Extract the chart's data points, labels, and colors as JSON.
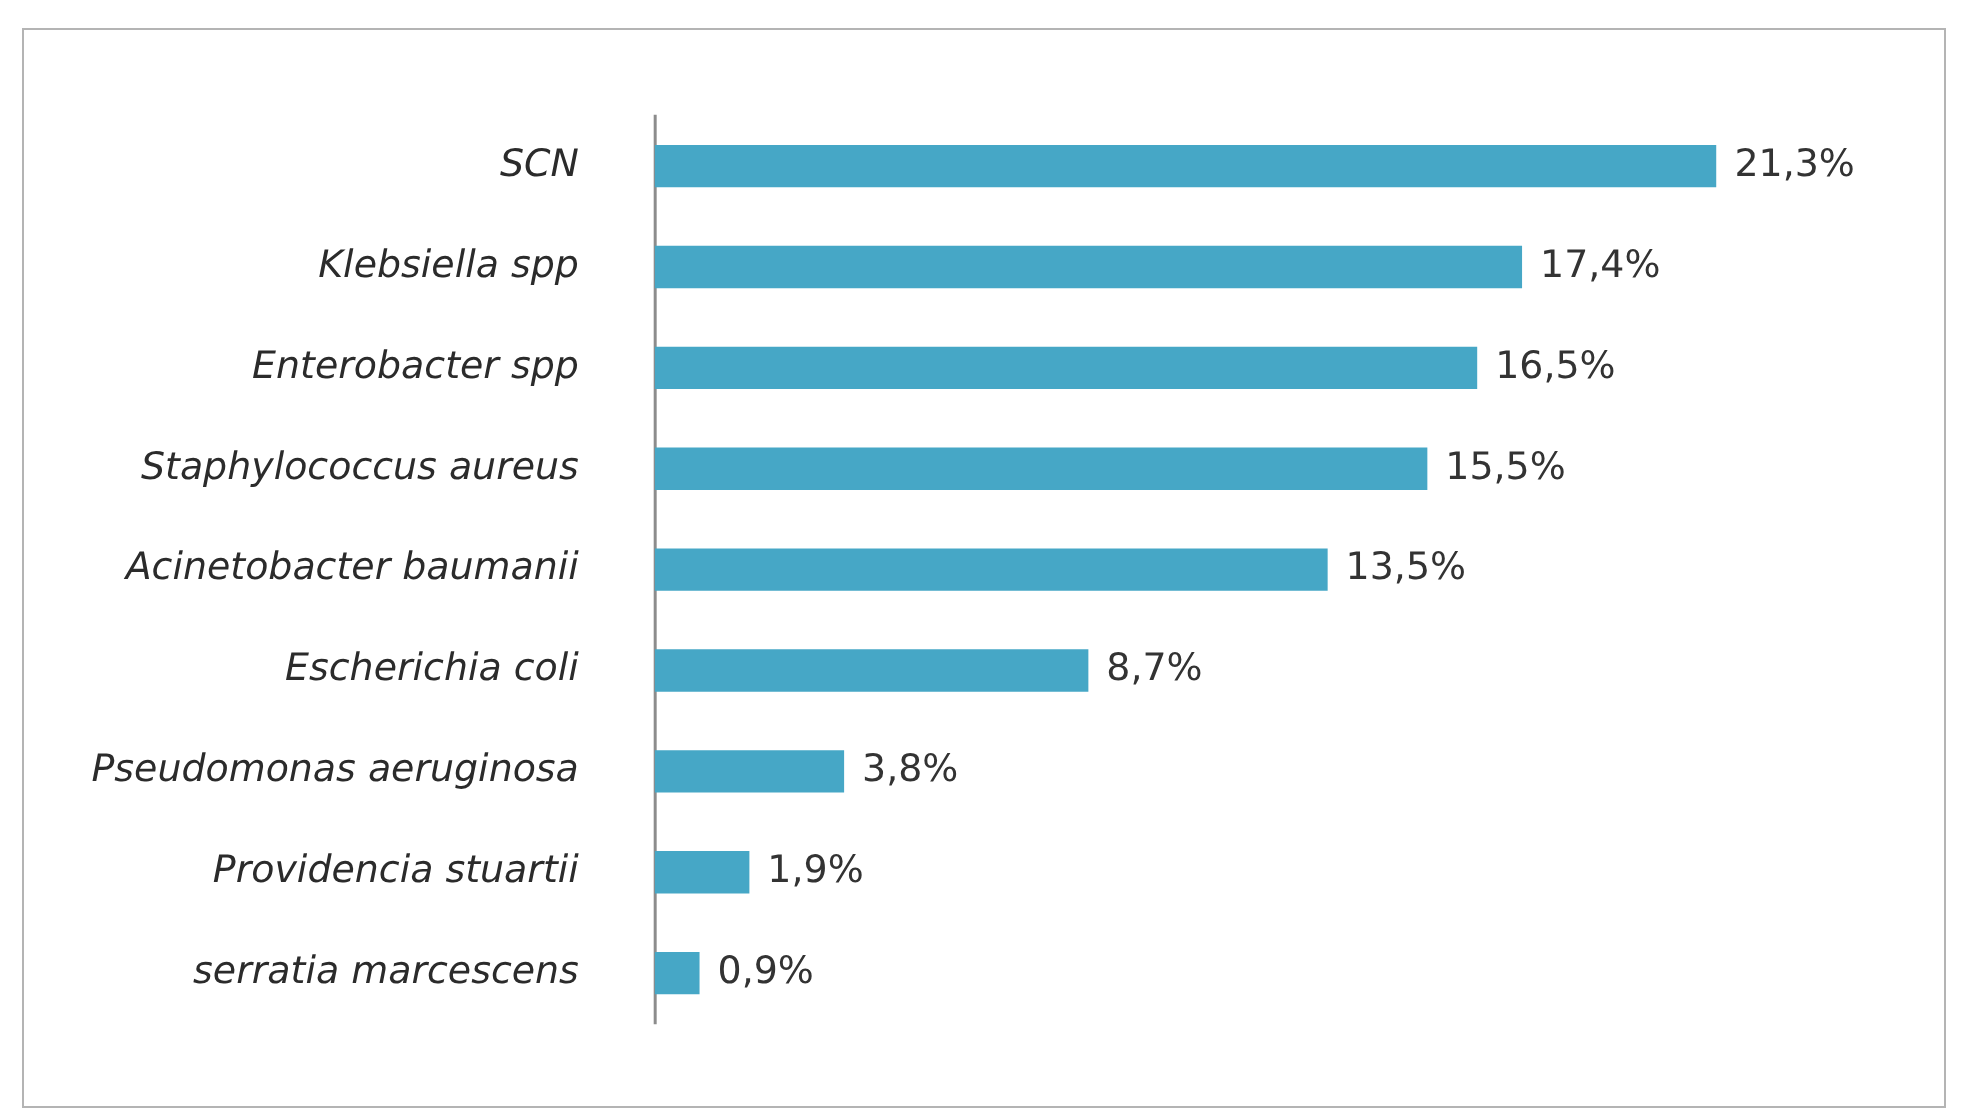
{
  "chart_data": {
    "type": "bar",
    "orientation": "horizontal",
    "tick_labels": "y",
    "categories": [
      "SCN",
      "Klebsiella spp",
      "Enterobacter spp",
      "Staphylococcus aureus",
      "Acinetobacter baumanii",
      "Escherichia coli",
      "Pseudomonas aeruginosa",
      "Providencia stuartii",
      "serratia marcescens"
    ],
    "values": [
      21.3,
      17.4,
      16.5,
      15.5,
      13.5,
      8.7,
      3.8,
      1.9,
      0.9
    ],
    "value_labels": [
      "21,3%",
      "17,4%",
      "16,5%",
      "15,5%",
      "13,5%",
      "8,7%",
      "3,8%",
      "1,9%",
      "0,9%"
    ],
    "color": "#46a7c6"
  }
}
